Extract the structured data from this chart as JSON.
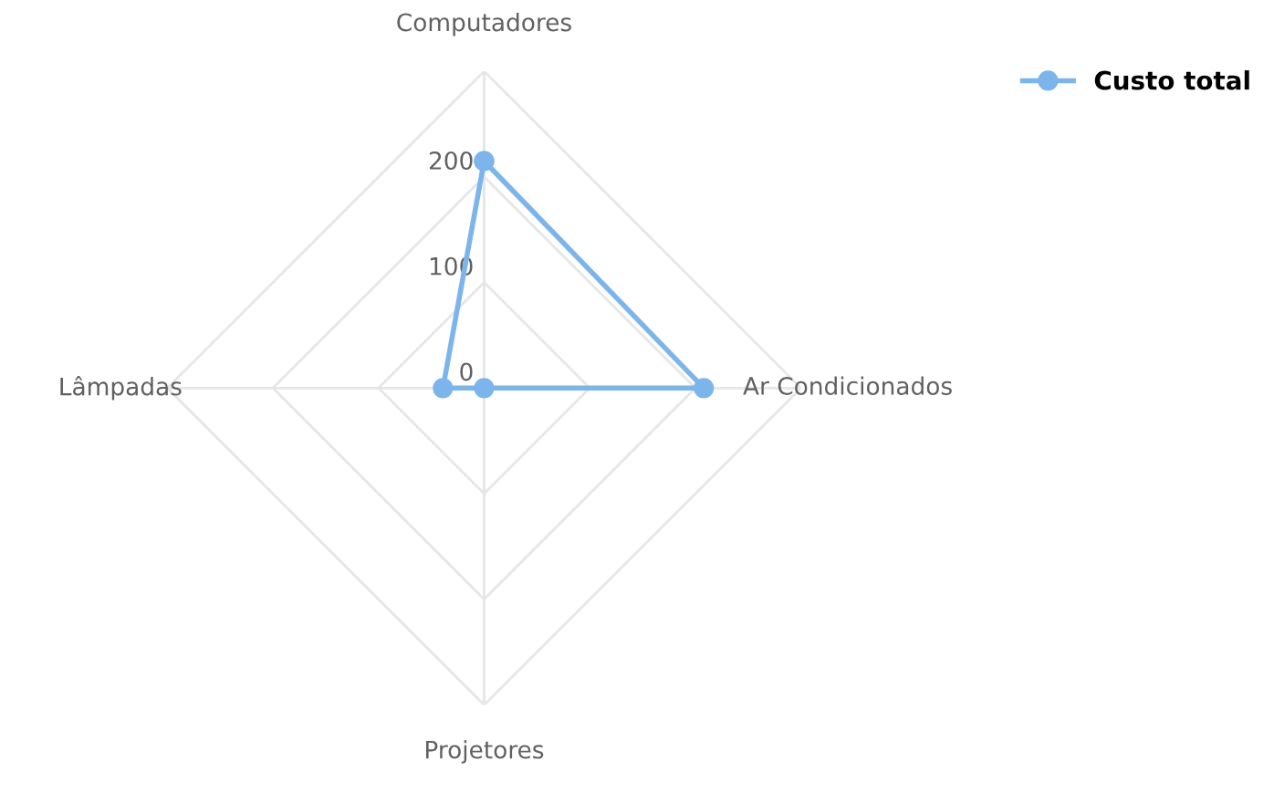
{
  "chart_data": {
    "type": "radar",
    "categories": [
      "Computadores",
      "Ar Condicionados",
      "Projetores",
      "Lâmpadas"
    ],
    "series": [
      {
        "name": "Custo total",
        "color": "#7cb5ec",
        "values": [
          215,
          208,
          0,
          39
        ]
      }
    ],
    "ylim": [
      0,
      300
    ],
    "yticks": [
      0,
      100,
      200
    ],
    "grid": true,
    "legend": "top right",
    "marker": "circle",
    "line_style": "solid"
  }
}
